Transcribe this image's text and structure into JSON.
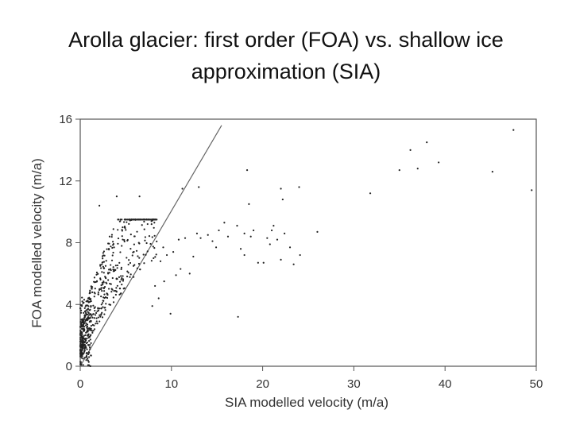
{
  "slide": {
    "title_line1": "Arolla glacier: first order (FOA) vs. shallow ice",
    "title_line2": "approximation (SIA)"
  },
  "chart_data": {
    "type": "scatter",
    "xlabel": "SIA modelled velocity (m/a)",
    "ylabel": "FOA modelled velocity (m/a)",
    "xlim": [
      0,
      50
    ],
    "ylim": [
      0,
      16
    ],
    "xticks": [
      0,
      10,
      20,
      30,
      40,
      50
    ],
    "yticks": [
      0,
      4,
      8,
      12,
      16
    ],
    "grid": false,
    "reference_line": {
      "x": [
        0,
        15.5
      ],
      "y": [
        0,
        15.6
      ]
    },
    "point_color": "#222222",
    "line_color": "#666666",
    "points": [
      [
        47.5,
        15.3
      ],
      [
        38,
        14.5
      ],
      [
        36.2,
        14
      ],
      [
        39.3,
        13.2
      ],
      [
        37,
        12.8
      ],
      [
        35,
        12.7
      ],
      [
        45.2,
        12.6
      ],
      [
        49.5,
        11.4
      ],
      [
        31.8,
        11.2
      ],
      [
        18.3,
        12.7
      ],
      [
        22,
        11.5
      ],
      [
        24,
        11.6
      ],
      [
        13,
        11.6
      ],
      [
        11.2,
        11.5
      ],
      [
        22.2,
        10.8
      ],
      [
        18.5,
        10.5
      ],
      [
        2.1,
        10.4
      ],
      [
        4,
        11
      ],
      [
        6.5,
        11
      ],
      [
        26,
        8.7
      ],
      [
        22.4,
        8.6
      ],
      [
        21,
        8.8
      ],
      [
        20.5,
        8.3
      ],
      [
        18,
        8.6
      ],
      [
        17.2,
        9.1
      ],
      [
        15.8,
        9.3
      ],
      [
        15.2,
        8.8
      ],
      [
        14,
        8.5
      ],
      [
        12.8,
        8.6
      ],
      [
        11.5,
        8.3
      ],
      [
        10.8,
        8.2
      ],
      [
        19,
        8.8
      ],
      [
        18.7,
        8.4
      ],
      [
        21.2,
        9.1
      ],
      [
        23,
        7.7
      ],
      [
        23.4,
        6.6
      ],
      [
        22,
        6.9
      ],
      [
        19.5,
        6.7
      ],
      [
        18,
        7.2
      ],
      [
        20.1,
        6.7
      ],
      [
        24.1,
        7.2
      ],
      [
        12,
        6
      ],
      [
        14.5,
        8.1
      ],
      [
        13.2,
        8.3
      ],
      [
        10.2,
        7.4
      ],
      [
        9.5,
        7.2
      ],
      [
        9.1,
        7.7
      ],
      [
        8.8,
        6.8
      ],
      [
        9.9,
        3.4
      ],
      [
        17.3,
        3.2
      ],
      [
        11,
        6.3
      ],
      [
        8.2,
        5.2
      ],
      [
        8.6,
        4.4
      ],
      [
        7.9,
        3.9
      ],
      [
        9.2,
        5.5
      ],
      [
        10.5,
        5.9
      ],
      [
        16.2,
        8.4
      ],
      [
        17.6,
        7.6
      ],
      [
        20.8,
        7.9
      ],
      [
        21.6,
        8.2
      ],
      [
        12.4,
        7.1
      ],
      [
        14.9,
        7.7
      ]
    ]
  }
}
